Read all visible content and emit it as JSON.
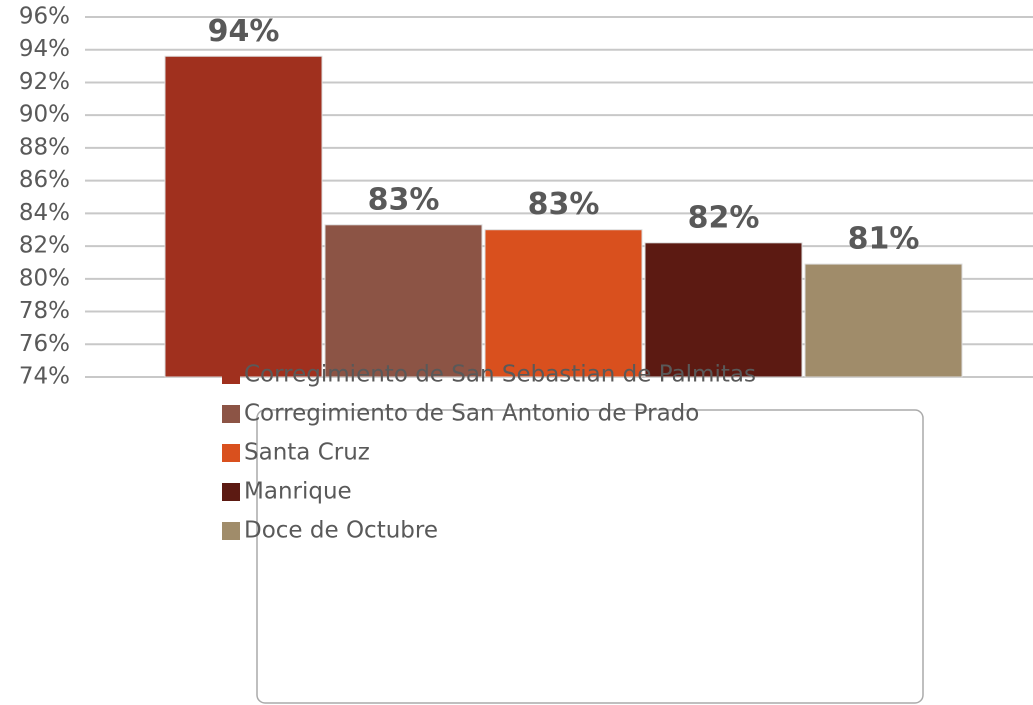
{
  "chart_data": {
    "type": "bar",
    "categories": [
      null
    ],
    "series": [
      {
        "name": "Corregimiento de San Sebastian de Palmitas",
        "color": "#a0301e",
        "values": [
          93.6
        ],
        "value_labels": [
          "94%"
        ]
      },
      {
        "name": "Corregimiento de San Antonio de Prado",
        "color": "#8c5445",
        "values": [
          83.3
        ],
        "value_labels": [
          "83%"
        ]
      },
      {
        "name": "Santa Cruz",
        "color": "#d9501e",
        "values": [
          83.0
        ],
        "value_labels": [
          "83%"
        ]
      },
      {
        "name": "Manrique",
        "color": "#5c1a12",
        "values": [
          82.2
        ],
        "value_labels": [
          "82%"
        ]
      },
      {
        "name": "Doce de Octubre",
        "color": "#a08c6a",
        "values": [
          80.9
        ],
        "value_labels": [
          "81%"
        ]
      }
    ],
    "ylim": [
      74,
      96
    ],
    "yticks": [
      {
        "value": 74,
        "label": "74%"
      },
      {
        "value": 76,
        "label": "76%"
      },
      {
        "value": 78,
        "label": "78%"
      },
      {
        "value": 80,
        "label": "80%"
      },
      {
        "value": 82,
        "label": "82%"
      },
      {
        "value": 84,
        "label": "84%"
      },
      {
        "value": 86,
        "label": "86%"
      },
      {
        "value": 88,
        "label": "88%"
      },
      {
        "value": 90,
        "label": "90%"
      },
      {
        "value": 92,
        "label": "92%"
      },
      {
        "value": 94,
        "label": "94%"
      },
      {
        "value": 96,
        "label": "96%"
      }
    ],
    "grid": true
  }
}
